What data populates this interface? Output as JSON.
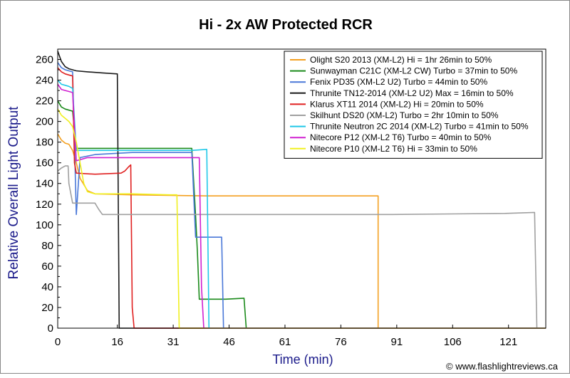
{
  "chart_data": {
    "type": "line",
    "title": "Hi - 2x AW Protected RCR",
    "xlabel": "Time (min)",
    "ylabel": "Relative Overall Light Output",
    "copyright": "© www.flashlightreviews.ca",
    "xlim": [
      0,
      131
    ],
    "ylim": [
      0,
      270
    ],
    "x_ticks": [
      0,
      16,
      31,
      46,
      61,
      76,
      91,
      106,
      121
    ],
    "y_ticks": [
      0,
      20,
      40,
      60,
      80,
      100,
      120,
      140,
      160,
      180,
      200,
      220,
      240,
      260
    ],
    "grid": false,
    "legend_position": "top-right",
    "series": [
      {
        "name": "Olight S20 2013 (XM-L2) Hi = 1hr 26min to 50%",
        "color": "#f4a020",
        "points": [
          [
            0,
            188
          ],
          [
            1,
            182
          ],
          [
            2,
            179
          ],
          [
            3,
            178
          ],
          [
            4,
            172
          ],
          [
            5,
            160
          ],
          [
            6,
            145
          ],
          [
            8,
            133
          ],
          [
            10,
            130
          ],
          [
            20,
            129
          ],
          [
            40,
            128
          ],
          [
            60,
            128
          ],
          [
            86,
            128
          ],
          [
            86,
            0
          ],
          [
            131,
            0
          ]
        ]
      },
      {
        "name": "Sunwayman C21C (XM-L2 CW) Turbo = 37min to 50%",
        "color": "#1a8a1a",
        "points": [
          [
            0,
            220
          ],
          [
            1,
            214
          ],
          [
            2,
            212
          ],
          [
            3,
            211
          ],
          [
            4,
            210
          ],
          [
            5,
            174
          ],
          [
            20,
            174
          ],
          [
            36,
            174
          ],
          [
            37,
            109
          ],
          [
            37.5,
            73
          ],
          [
            38,
            28
          ],
          [
            45,
            28
          ],
          [
            50,
            29
          ],
          [
            50.6,
            0
          ],
          [
            131,
            0
          ]
        ]
      },
      {
        "name": "Fenix PD35 (XM-L2 U2) Turbo = 44min to 50%",
        "color": "#4a78d8",
        "points": [
          [
            0,
            257
          ],
          [
            1,
            252
          ],
          [
            2,
            250
          ],
          [
            3,
            249
          ],
          [
            4,
            248
          ],
          [
            5,
            110
          ],
          [
            6,
            165
          ],
          [
            10,
            168
          ],
          [
            20,
            170
          ],
          [
            36,
            170
          ],
          [
            37,
            88
          ],
          [
            44,
            88
          ],
          [
            44.5,
            0
          ],
          [
            131,
            0
          ]
        ]
      },
      {
        "name": "Thrunite TN12-2014 (XM-L2 U2) Max = 16min to 50%",
        "color": "#1a1a1a",
        "points": [
          [
            0,
            268
          ],
          [
            1,
            258
          ],
          [
            2,
            253
          ],
          [
            3,
            251
          ],
          [
            5,
            249
          ],
          [
            8,
            248
          ],
          [
            12,
            247
          ],
          [
            16,
            246
          ],
          [
            16.5,
            0
          ],
          [
            131,
            0
          ]
        ]
      },
      {
        "name": "Klarus XT11 2014 (XM-L2) Hi = 20min to 50%",
        "color": "#e02020",
        "points": [
          [
            0,
            252
          ],
          [
            1,
            248
          ],
          [
            2,
            246
          ],
          [
            3,
            245
          ],
          [
            4,
            244
          ],
          [
            4.5,
            160
          ],
          [
            5,
            150
          ],
          [
            10,
            149
          ],
          [
            17,
            150
          ],
          [
            18,
            152
          ],
          [
            19,
            156
          ],
          [
            19.6,
            158
          ],
          [
            20,
            20
          ],
          [
            20.5,
            0
          ],
          [
            131,
            0
          ]
        ]
      },
      {
        "name": "Skilhunt DS20 (XM-L2) Turbo = 2hr 10min to 50%",
        "color": "#a0a0a0",
        "points": [
          [
            0,
            152
          ],
          [
            1,
            155
          ],
          [
            2,
            157
          ],
          [
            2.8,
            157
          ],
          [
            3,
            140
          ],
          [
            4,
            121
          ],
          [
            6,
            121
          ],
          [
            10,
            121
          ],
          [
            11,
            115
          ],
          [
            12,
            110
          ],
          [
            30,
            110
          ],
          [
            60,
            110
          ],
          [
            90,
            110
          ],
          [
            120,
            111
          ],
          [
            128,
            112
          ],
          [
            128.6,
            0
          ],
          [
            131,
            0
          ]
        ]
      },
      {
        "name": "Thrunite Neutron 2C 2014 (XM-L2) Turbo = 41min to 50%",
        "color": "#20c8e8",
        "points": [
          [
            0,
            240
          ],
          [
            1,
            236
          ],
          [
            2,
            235
          ],
          [
            3,
            234
          ],
          [
            4,
            232
          ],
          [
            5,
            172
          ],
          [
            10,
            172
          ],
          [
            20,
            172
          ],
          [
            36,
            172
          ],
          [
            40,
            173
          ],
          [
            40.6,
            0
          ],
          [
            131,
            0
          ]
        ]
      },
      {
        "name": "Nitecore P12 (XM-L2 T6) Turbo = 40min to 50%",
        "color": "#d020d0",
        "points": [
          [
            0,
            236
          ],
          [
            1,
            231
          ],
          [
            2,
            230
          ],
          [
            3,
            229
          ],
          [
            4,
            228
          ],
          [
            5,
            162
          ],
          [
            8,
            165
          ],
          [
            20,
            165
          ],
          [
            30,
            165
          ],
          [
            38,
            165
          ],
          [
            38.6,
            40
          ],
          [
            39.2,
            0
          ],
          [
            131,
            0
          ]
        ]
      },
      {
        "name": "Nitecore P10 (XM-L2 T6) Hi = 33min to 50%",
        "color": "#f0f020",
        "points": [
          [
            0,
            212
          ],
          [
            1,
            206
          ],
          [
            2,
            203
          ],
          [
            3,
            200
          ],
          [
            4,
            195
          ],
          [
            5,
            180
          ],
          [
            6,
            160
          ],
          [
            7,
            140
          ],
          [
            8,
            132
          ],
          [
            10,
            130
          ],
          [
            20,
            130
          ],
          [
            30,
            129
          ],
          [
            32,
            129
          ],
          [
            32.6,
            0
          ],
          [
            131,
            0
          ]
        ]
      }
    ]
  }
}
